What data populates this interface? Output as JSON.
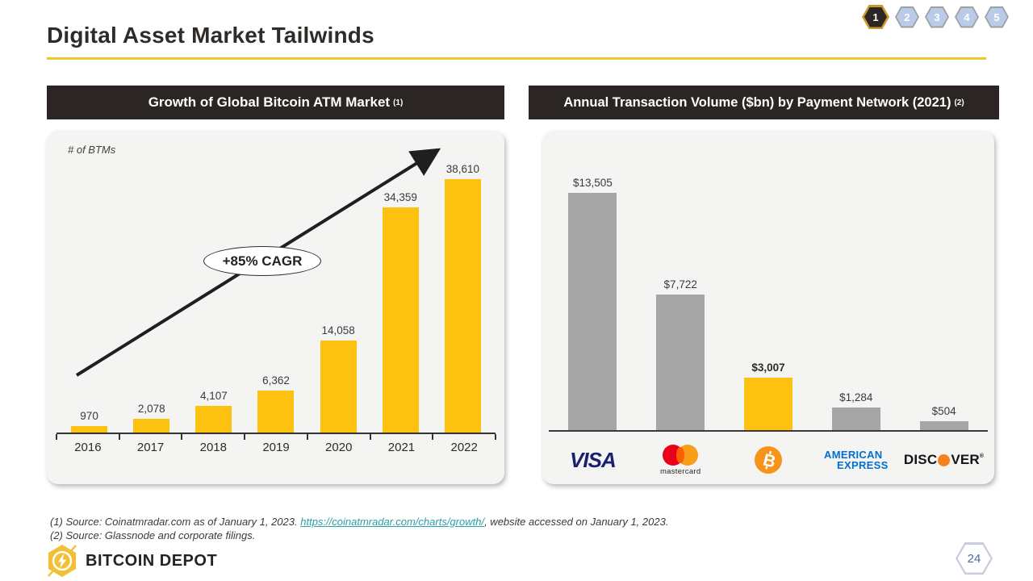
{
  "slide": {
    "title": "Digital Asset Market Tailwinds",
    "page_number": "24"
  },
  "nav": {
    "hexagons": [
      {
        "label": "1",
        "active": true
      },
      {
        "label": "2",
        "active": false
      },
      {
        "label": "3",
        "active": false
      },
      {
        "label": "4",
        "active": false
      },
      {
        "label": "5",
        "active": false
      }
    ]
  },
  "left_panel": {
    "header": "Growth of Global Bitcoin ATM Market",
    "header_note": "(1)",
    "axis_label": "# of BTMs",
    "annotation": "+85% CAGR"
  },
  "right_panel": {
    "header": "Annual Transaction Volume ($bn) by Payment Network (2021)",
    "header_note": "(2)"
  },
  "chart_data": [
    {
      "type": "bar",
      "title": "Growth of Global Bitcoin ATM Market",
      "ylabel": "# of BTMs",
      "categories": [
        "2016",
        "2017",
        "2018",
        "2019",
        "2020",
        "2021",
        "2022"
      ],
      "values": [
        970,
        2078,
        4107,
        6362,
        14058,
        34359,
        38610
      ],
      "labels": [
        "970",
        "2,078",
        "4,107",
        "6,362",
        "14,058",
        "34,359",
        "38,610"
      ],
      "annotation": "+85% CAGR",
      "bar_color": "#FDC20F",
      "ylim": [
        0,
        40000
      ],
      "grid": false,
      "legend": false
    },
    {
      "type": "bar",
      "title": "Annual Transaction Volume ($bn) by Payment Network (2021)",
      "categories": [
        "Visa",
        "Mastercard",
        "Bitcoin",
        "American Express",
        "Discover"
      ],
      "values": [
        13505,
        7722,
        3007,
        1284,
        504
      ],
      "labels": [
        "$13,505",
        "$7,722",
        "$3,007",
        "$1,284",
        "$504"
      ],
      "bar_colors": [
        "#A6A6A6",
        "#A6A6A6",
        "#FDC20F",
        "#A6A6A6",
        "#A6A6A6"
      ],
      "highlight_index": 2,
      "ylim": [
        0,
        14000
      ],
      "grid": false,
      "legend": false
    }
  ],
  "logos": {
    "visa": "VISA",
    "mastercard": "mastercard",
    "amex_line1": "AMERICAN",
    "amex_line2": "EXPRESS",
    "discover_left": "DISC",
    "discover_right": "VER",
    "discover_reg": "®"
  },
  "footer": {
    "note1_prefix": "(1)  Source: Coinatmradar.com as of January 1, 2023. ",
    "note1_link": "https://coinatmradar.com/charts/growth/",
    "note1_suffix": ", website accessed on January 1, 2023.",
    "note2": "(2) Source: Glassnode and corporate filings.",
    "brand": "BITCOIN DEPOT"
  },
  "colors": {
    "accent_yellow": "#F5C431",
    "bar_yellow": "#FDC20F",
    "bar_gray": "#A6A6A6",
    "header_bg": "#2B2523"
  }
}
